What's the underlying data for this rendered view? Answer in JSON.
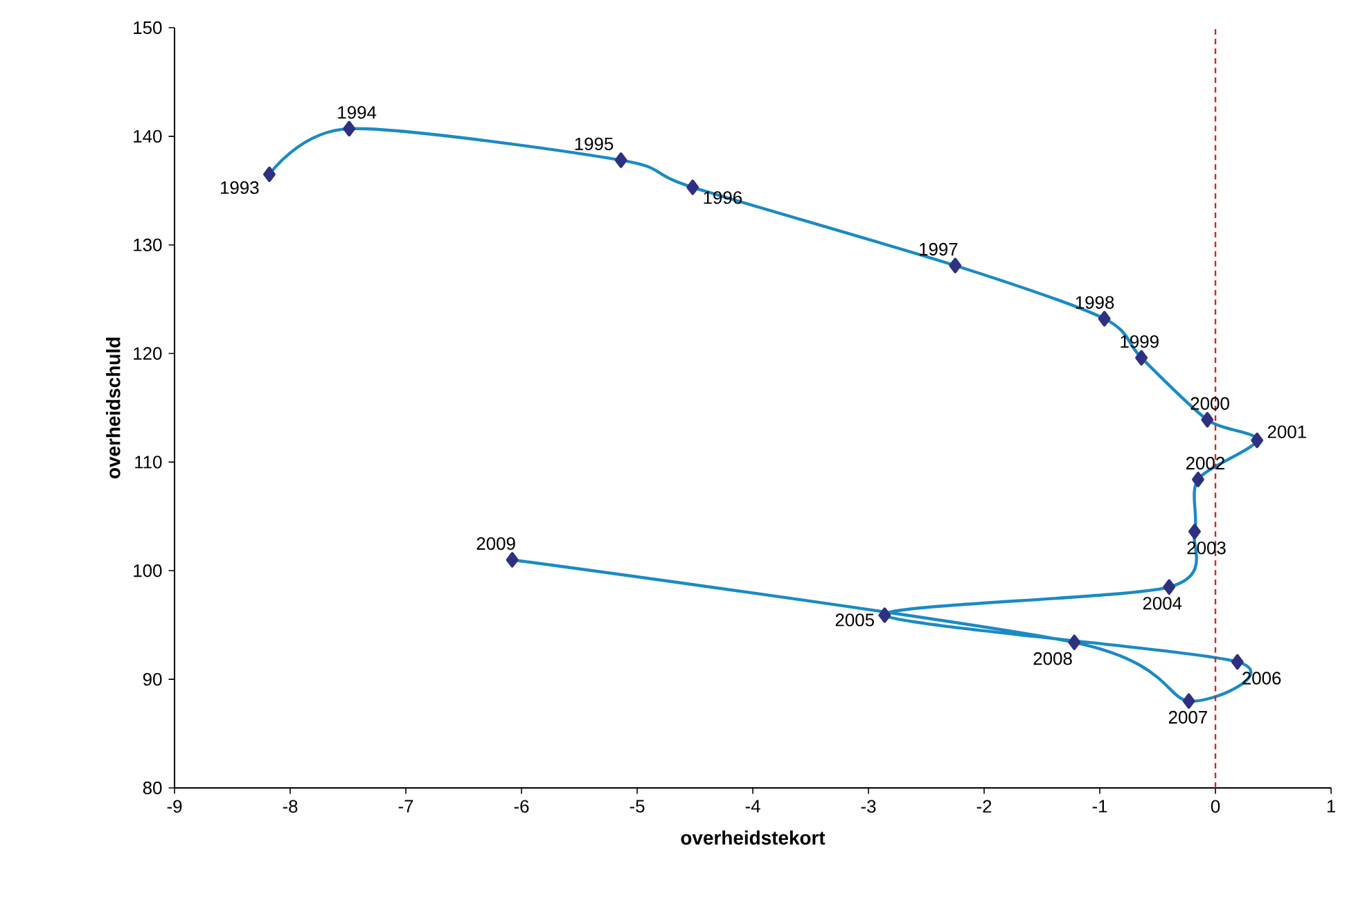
{
  "chart_data": {
    "type": "line",
    "xlabel": "overheidstekort",
    "ylabel": "overheidschuld",
    "xlim": [
      -9,
      1
    ],
    "ylim": [
      80,
      150
    ],
    "xticks": [
      -9,
      -8,
      -7,
      -6,
      -5,
      -4,
      -3,
      -2,
      -1,
      0,
      1
    ],
    "yticks": [
      80,
      90,
      100,
      110,
      120,
      130,
      140,
      150
    ],
    "x": [
      -8.18,
      -7.49,
      -5.14,
      -4.52,
      -2.25,
      -0.96,
      -0.64,
      -0.07,
      0.36,
      -0.15,
      -0.18,
      -0.4,
      -2.86,
      0.19,
      -0.23,
      -1.22,
      -6.08
    ],
    "series": [
      {
        "color": "#1b8ac4",
        "values": [
          136.5,
          140.7,
          137.8,
          135.3,
          128.1,
          123.2,
          119.6,
          113.9,
          112.0,
          108.4,
          103.6,
          98.5,
          95.9,
          91.6,
          88.0,
          93.4,
          101.0
        ]
      }
    ],
    "marker": "diamond",
    "line_style": "solid",
    "grid": false,
    "ref_lines": [
      {
        "axis": "x",
        "value": 0,
        "label": null,
        "color": "#e0201b",
        "line_style": "dashed"
      }
    ],
    "annotations": [
      {
        "text": "1993",
        "x": -8.18,
        "y": 136.5
      },
      {
        "text": "1994",
        "x": -7.49,
        "y": 140.7
      },
      {
        "text": "1995",
        "x": -5.14,
        "y": 137.8
      },
      {
        "text": "1996",
        "x": -4.52,
        "y": 135.3
      },
      {
        "text": "1997",
        "x": -2.25,
        "y": 128.1
      },
      {
        "text": "1998",
        "x": -0.96,
        "y": 123.2
      },
      {
        "text": "1999",
        "x": -0.64,
        "y": 119.6
      },
      {
        "text": "2000",
        "x": -0.07,
        "y": 113.9
      },
      {
        "text": "2001",
        "x": 0.36,
        "y": 112.0
      },
      {
        "text": "2002",
        "x": -0.15,
        "y": 108.4
      },
      {
        "text": "2003",
        "x": -0.18,
        "y": 103.6
      },
      {
        "text": "2004",
        "x": -0.4,
        "y": 98.5
      },
      {
        "text": "2005",
        "x": -2.86,
        "y": 95.9
      },
      {
        "text": "2006",
        "x": 0.19,
        "y": 91.6
      },
      {
        "text": "2007",
        "x": -0.23,
        "y": 88.0
      },
      {
        "text": "2008",
        "x": -1.22,
        "y": 93.4
      },
      {
        "text": "2009",
        "x": -6.08,
        "y": 101.0
      }
    ]
  }
}
